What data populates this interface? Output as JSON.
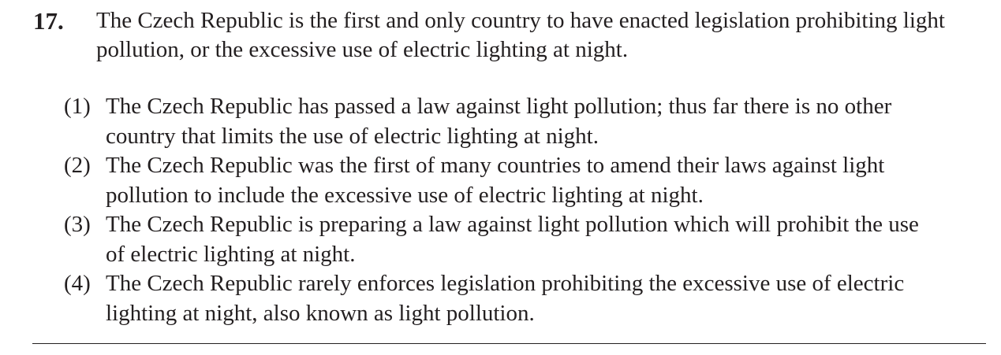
{
  "question": {
    "number": "17.",
    "stem": "The Czech Republic is the first and only country to have enacted legislation prohibiting light pollution, or the excessive use of electric lighting at night.",
    "choices": [
      {
        "marker": "(1)",
        "text": "The Czech Republic has passed a law against light pollution; thus far there is no other country that limits the use of electric lighting at night."
      },
      {
        "marker": "(2)",
        "text": "The Czech Republic was the first of many countries to amend their laws against light pollution to include the excessive use of electric lighting at night."
      },
      {
        "marker": "(3)",
        "text": "The Czech Republic is preparing a law against light pollution which will prohibit the use of electric lighting at night."
      },
      {
        "marker": "(4)",
        "text": "The Czech Republic rarely enforces legislation prohibiting the excessive use of electric lighting at night, also known as light pollution."
      }
    ]
  }
}
